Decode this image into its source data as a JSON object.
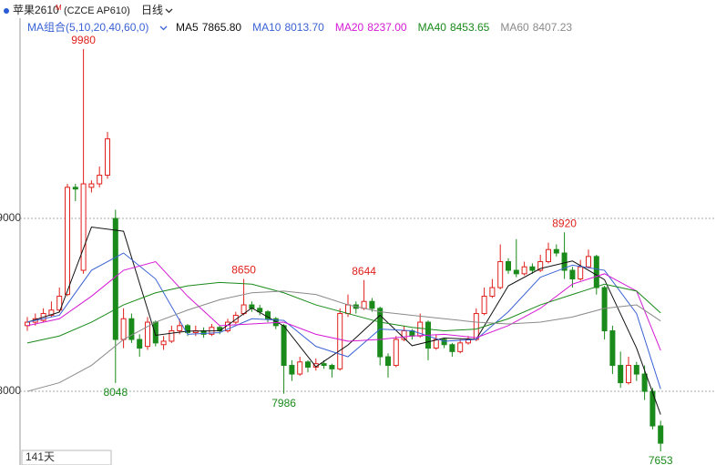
{
  "chart_data": {
    "type": "candlestick",
    "title": "苹果2610",
    "title_mark": "M",
    "symbol": "(CZCE AP610)",
    "period": "日线",
    "indicator": "MA组合(5,10,20,40,60,0)",
    "footer": "141天",
    "up_color": "#e0201c",
    "down_color": "#1a8a1a",
    "ylim": [
      7574,
      10158
    ],
    "yticks": [
      8000,
      9000
    ],
    "grid": true,
    "ohlc": [
      [
        8380,
        8430,
        8350,
        8400
      ],
      [
        8400,
        8450,
        8380,
        8420
      ],
      [
        8410,
        8480,
        8400,
        8450
      ],
      [
        8440,
        8520,
        8430,
        8470
      ],
      [
        8470,
        8600,
        8460,
        8550
      ],
      [
        8560,
        9200,
        8550,
        9180
      ],
      [
        9180,
        9200,
        9100,
        9170
      ],
      [
        8700,
        9980,
        8680,
        9200
      ],
      [
        9180,
        9220,
        9150,
        9200
      ],
      [
        9200,
        9300,
        9180,
        9250
      ],
      [
        9250,
        9500,
        9230,
        9460
      ],
      [
        9000,
        9050,
        8048,
        8300
      ],
      [
        8300,
        8480,
        8250,
        8420
      ],
      [
        8420,
        8450,
        8280,
        8300
      ],
      [
        8300,
        8330,
        8200,
        8250
      ],
      [
        8260,
        8430,
        8240,
        8400
      ],
      [
        8400,
        8410,
        8260,
        8280
      ],
      [
        8270,
        8320,
        8240,
        8290
      ],
      [
        8290,
        8380,
        8280,
        8350
      ],
      [
        8350,
        8420,
        8330,
        8380
      ],
      [
        8380,
        8390,
        8320,
        8340
      ],
      [
        8340,
        8380,
        8320,
        8350
      ],
      [
        8350,
        8370,
        8310,
        8330
      ],
      [
        8330,
        8390,
        8320,
        8370
      ],
      [
        8370,
        8380,
        8330,
        8350
      ],
      [
        8350,
        8420,
        8340,
        8400
      ],
      [
        8400,
        8460,
        8390,
        8440
      ],
      [
        8450,
        8650,
        8440,
        8500
      ],
      [
        8500,
        8520,
        8460,
        8480
      ],
      [
        8480,
        8500,
        8440,
        8460
      ],
      [
        8460,
        8470,
        8400,
        8420
      ],
      [
        8420,
        8430,
        8360,
        8380
      ],
      [
        8380,
        8390,
        7986,
        8150
      ],
      [
        8150,
        8180,
        8060,
        8100
      ],
      [
        8100,
        8200,
        8090,
        8170
      ],
      [
        8170,
        8180,
        8110,
        8140
      ],
      [
        8140,
        8190,
        8120,
        8160
      ],
      [
        8160,
        8180,
        8130,
        8150
      ],
      [
        8150,
        8160,
        8080,
        8130
      ],
      [
        8130,
        8480,
        8120,
        8450
      ],
      [
        8450,
        8560,
        8430,
        8500
      ],
      [
        8500,
        8520,
        8450,
        8480
      ],
      [
        8480,
        8644,
        8470,
        8520
      ],
      [
        8520,
        8540,
        8460,
        8480
      ],
      [
        8480,
        8490,
        8150,
        8200
      ],
      [
        8200,
        8220,
        8080,
        8150
      ],
      [
        8150,
        8320,
        8140,
        8300
      ],
      [
        8300,
        8380,
        8290,
        8350
      ],
      [
        8350,
        8360,
        8300,
        8320
      ],
      [
        8320,
        8450,
        8310,
        8400
      ],
      [
        8400,
        8410,
        8180,
        8250
      ],
      [
        8250,
        8330,
        8240,
        8300
      ],
      [
        8300,
        8310,
        8250,
        8270
      ],
      [
        8270,
        8280,
        8200,
        8230
      ],
      [
        8230,
        8300,
        8220,
        8280
      ],
      [
        8280,
        8320,
        8270,
        8300
      ],
      [
        8300,
        8480,
        8290,
        8450
      ],
      [
        8450,
        8600,
        8440,
        8550
      ],
      [
        8550,
        8650,
        8540,
        8600
      ],
      [
        8600,
        8850,
        8590,
        8750
      ],
      [
        8750,
        8770,
        8680,
        8700
      ],
      [
        8700,
        8880,
        8660,
        8680
      ],
      [
        8680,
        8750,
        8670,
        8720
      ],
      [
        8720,
        8740,
        8680,
        8700
      ],
      [
        8700,
        8790,
        8690,
        8750
      ],
      [
        8750,
        8860,
        8740,
        8820
      ],
      [
        8820,
        8850,
        8780,
        8800
      ],
      [
        8800,
        8920,
        8650,
        8700
      ],
      [
        8700,
        8720,
        8600,
        8650
      ],
      [
        8650,
        8760,
        8640,
        8720
      ],
      [
        8720,
        8820,
        8710,
        8780
      ],
      [
        8780,
        8790,
        8560,
        8600
      ],
      [
        8600,
        8610,
        8300,
        8350
      ],
      [
        8350,
        8380,
        8100,
        8150
      ],
      [
        8150,
        8230,
        8020,
        8050
      ],
      [
        8050,
        8200,
        8040,
        8150
      ],
      [
        8150,
        8170,
        8060,
        8100
      ],
      [
        8100,
        8150,
        7950,
        8000
      ],
      [
        8000,
        8020,
        7780,
        7800
      ],
      [
        7800,
        7830,
        7653,
        7700
      ]
    ],
    "annotations": [
      {
        "x": 7,
        "value": 9980,
        "side": "above"
      },
      {
        "x": 11,
        "value": 8048,
        "side": "below"
      },
      {
        "x": 27,
        "value": 8650,
        "side": "above"
      },
      {
        "x": 32,
        "value": 7986,
        "side": "below"
      },
      {
        "x": 42,
        "value": 8644,
        "side": "above"
      },
      {
        "x": 67,
        "value": 8920,
        "side": "above"
      },
      {
        "x": 79,
        "value": 7653,
        "side": "below"
      }
    ],
    "ma_x": [
      0,
      4,
      8,
      12,
      16,
      20,
      24,
      28,
      32,
      36,
      40,
      44,
      48,
      52,
      56,
      60,
      64,
      68,
      72,
      76,
      79
    ],
    "series": [
      {
        "name": "MA5",
        "current_label": "7865.80",
        "color": "#111111",
        "values": [
          8400,
          8458,
          8950,
          8926,
          8324,
          8348,
          8350,
          8482,
          8378,
          8142,
          8268,
          8440,
          8264,
          8308,
          8301,
          8610,
          8710,
          8754,
          8646,
          8250,
          7865.8
        ]
      },
      {
        "name": "MA10",
        "current_label": "8013.70",
        "color": "#3a62d4",
        "values": [
          8400,
          8440,
          8700,
          8800,
          8650,
          8330,
          8340,
          8420,
          8410,
          8260,
          8200,
          8360,
          8350,
          8290,
          8300,
          8460,
          8660,
          8730,
          8700,
          8450,
          8013.7
        ]
      },
      {
        "name": "MA20",
        "current_label": "8237.00",
        "color": "#d41ad4",
        "values": [
          8380,
          8420,
          8550,
          8700,
          8750,
          8550,
          8380,
          8390,
          8400,
          8330,
          8290,
          8300,
          8320,
          8330,
          8310,
          8380,
          8480,
          8620,
          8680,
          8580,
          8237
        ]
      },
      {
        "name": "MA40",
        "current_label": "8453.65",
        "color": "#1a8a1a",
        "values": [
          8280,
          8320,
          8400,
          8500,
          8570,
          8610,
          8630,
          8620,
          8570,
          8500,
          8450,
          8400,
          8370,
          8350,
          8360,
          8420,
          8500,
          8560,
          8620,
          8580,
          8453.65
        ]
      },
      {
        "name": "MA60",
        "current_label": "8407.23",
        "color": "#8a8a8a",
        "values": [
          8000,
          8050,
          8150,
          8300,
          8400,
          8470,
          8530,
          8570,
          8580,
          8560,
          8500,
          8460,
          8440,
          8420,
          8400,
          8390,
          8400,
          8430,
          8480,
          8500,
          8407.23
        ]
      }
    ]
  }
}
